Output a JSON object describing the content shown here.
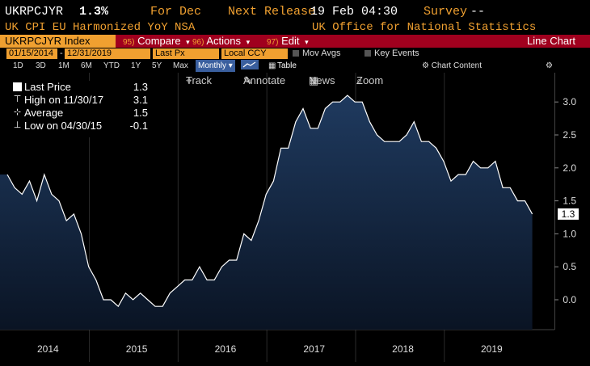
{
  "header": {
    "ticker": "UKRPCJYR",
    "last_value": "1.3%",
    "period_label": "For Dec",
    "next_release_label": "Next Release",
    "next_release_value": "19 Feb 04:30",
    "survey_label": "Survey",
    "survey_value": "--",
    "description": "UK CPI EU Harmonized YoY NSA",
    "source": "UK Office for National Statistics"
  },
  "menubar": {
    "ticker_input": "UKRPCJYR Index",
    "compare_num": "95)",
    "compare_label": "Compare",
    "actions_num": "96)",
    "actions_label": "Actions",
    "edit_num": "97)",
    "edit_label": "Edit",
    "chart_type": "Line Chart"
  },
  "settings": {
    "start_date": "01/15/2014",
    "end_date": "12/31/2019",
    "field": "Last Px",
    "currency": "Local CCY",
    "mov_avgs": "Mov Avgs",
    "key_events": "Key Events"
  },
  "ranges": {
    "items": [
      "1D",
      "3D",
      "1M",
      "6M",
      "YTD",
      "1Y",
      "5Y",
      "Max"
    ],
    "periodicity": "Monthly",
    "table": "Table",
    "chart_content": "Chart Content"
  },
  "toolbar": {
    "track": "Track",
    "annotate": "Annotate",
    "news": "News",
    "zoom": "Zoom"
  },
  "legend": {
    "last_price_label": "Last Price",
    "last_price_value": "1.3",
    "high_label": "High on 11/30/17",
    "high_value": "3.1",
    "average_label": "Average",
    "average_value": "1.5",
    "low_label": "Low on 04/30/15",
    "low_value": "-0.1"
  },
  "colors": {
    "fill_top": "#1f3a5f",
    "fill_bottom": "#0a1424",
    "line": "#ffffff",
    "accent_orange": "#f0a030",
    "menubar_red": "#a0001e"
  },
  "chart_data": {
    "type": "area",
    "x_start": "2014-01",
    "x_frequency": "monthly",
    "xtick_labels": [
      "2014",
      "2015",
      "2016",
      "2017",
      "2018",
      "2019"
    ],
    "yticks": [
      0.0,
      0.5,
      1.0,
      1.5,
      2.0,
      2.5,
      3.0
    ],
    "ylim": [
      -0.45,
      3.35
    ],
    "grid": "vertical year separators",
    "last_value_label": "1.3",
    "series": [
      {
        "values": [
          1.9,
          1.7,
          1.6,
          1.8,
          1.5,
          1.9,
          1.6,
          1.5,
          1.2,
          1.3,
          1.0,
          0.5,
          0.3,
          0.0,
          0.0,
          -0.1,
          0.1,
          0.0,
          0.1,
          0.0,
          -0.1,
          -0.1,
          0.1,
          0.2,
          0.3,
          0.3,
          0.5,
          0.3,
          0.3,
          0.5,
          0.6,
          0.6,
          1.0,
          0.9,
          1.2,
          1.6,
          1.8,
          2.3,
          2.3,
          2.7,
          2.9,
          2.6,
          2.6,
          2.9,
          3.0,
          3.0,
          3.1,
          3.0,
          3.0,
          2.7,
          2.5,
          2.4,
          2.4,
          2.4,
          2.5,
          2.7,
          2.4,
          2.4,
          2.3,
          2.1,
          1.8,
          1.9,
          1.9,
          2.1,
          2.0,
          2.0,
          2.1,
          1.7,
          1.7,
          1.5,
          1.5,
          1.3
        ]
      }
    ]
  }
}
